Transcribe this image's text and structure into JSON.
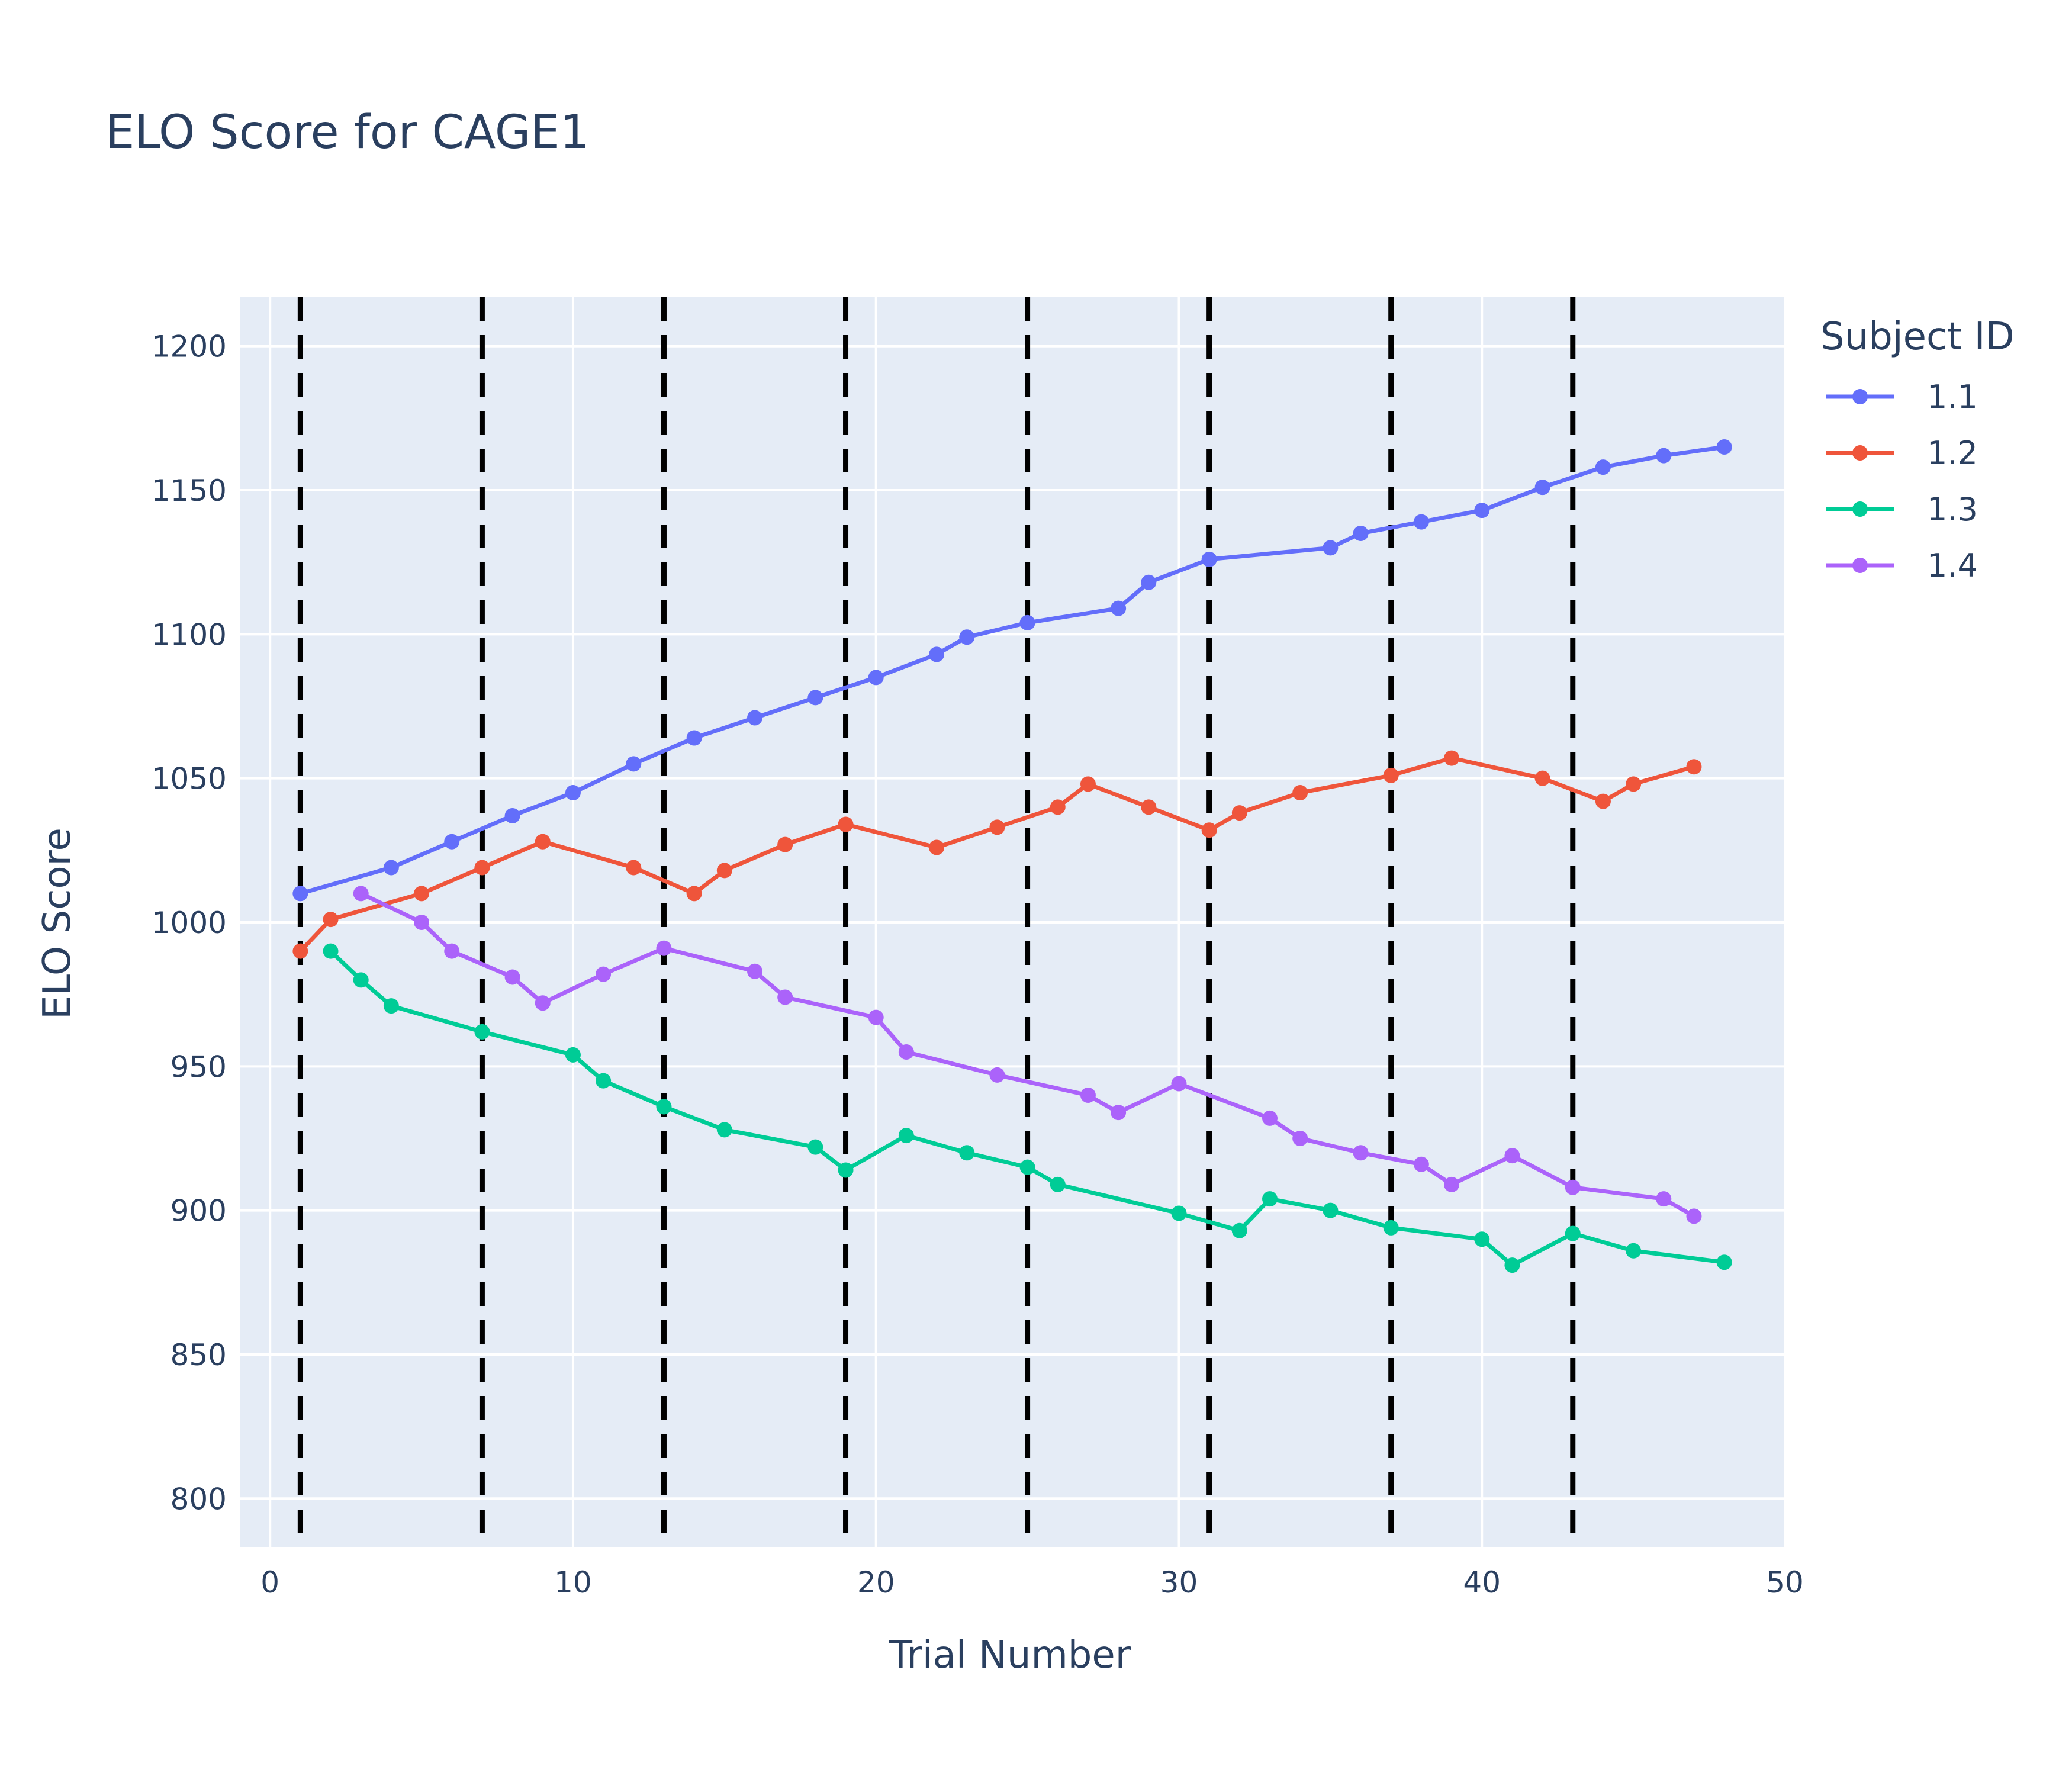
{
  "chart_data": {
    "type": "line",
    "title": "ELO Score for CAGE1",
    "xlabel": "Trial Number",
    "ylabel": "ELO Score",
    "xlim": [
      -1,
      50
    ],
    "ylim": [
      783,
      1217
    ],
    "x_ticks": [
      0,
      10,
      20,
      30,
      40,
      50
    ],
    "y_ticks": [
      800,
      850,
      900,
      950,
      1000,
      1050,
      1100,
      1150,
      1200
    ],
    "grid": true,
    "plot_background": "#e5ecf6",
    "legend": {
      "title": "Subject ID",
      "position": "right"
    },
    "vertical_lines": {
      "x": [
        1,
        7,
        13,
        19,
        25,
        31,
        37,
        43
      ],
      "color": "#000000",
      "style": "dashed"
    },
    "series": [
      {
        "name": "1.1",
        "color": "#636efa",
        "x": [
          1,
          4,
          6,
          8,
          10,
          12,
          14,
          16,
          18,
          20,
          22,
          23,
          25,
          28,
          29,
          31,
          35,
          36,
          38,
          40,
          42,
          44,
          46,
          48
        ],
        "y": [
          1010,
          1019,
          1028,
          1037,
          1045,
          1055,
          1064,
          1071,
          1078,
          1085,
          1093,
          1099,
          1104,
          1109,
          1118,
          1126,
          1130,
          1135,
          1139,
          1143,
          1151,
          1158,
          1162,
          1165
        ]
      },
      {
        "name": "1.2",
        "color": "#ef553b",
        "x": [
          1,
          2,
          5,
          7,
          9,
          12,
          14,
          15,
          17,
          19,
          22,
          24,
          26,
          27,
          29,
          31,
          32,
          34,
          37,
          39,
          42,
          44,
          45,
          47
        ],
        "y": [
          990,
          1001,
          1010,
          1019,
          1028,
          1019,
          1010,
          1018,
          1027,
          1034,
          1026,
          1033,
          1040,
          1048,
          1040,
          1032,
          1038,
          1045,
          1051,
          1057,
          1050,
          1042,
          1048,
          1054
        ]
      },
      {
        "name": "1.3",
        "color": "#00cc96",
        "x": [
          2,
          3,
          4,
          7,
          10,
          11,
          13,
          15,
          18,
          19,
          21,
          23,
          25,
          26,
          30,
          32,
          33,
          35,
          37,
          40,
          41,
          43,
          45,
          48
        ],
        "y": [
          990,
          980,
          971,
          962,
          954,
          945,
          936,
          928,
          922,
          914,
          926,
          920,
          915,
          909,
          899,
          893,
          904,
          900,
          894,
          890,
          881,
          892,
          886,
          882
        ]
      },
      {
        "name": "1.4",
        "color": "#ab63fa",
        "x": [
          3,
          5,
          6,
          8,
          9,
          11,
          13,
          16,
          17,
          20,
          21,
          24,
          27,
          28,
          30,
          33,
          34,
          36,
          38,
          39,
          41,
          43,
          46,
          47
        ],
        "y": [
          1010,
          1000,
          990,
          981,
          972,
          982,
          991,
          983,
          974,
          967,
          955,
          947,
          940,
          934,
          944,
          932,
          925,
          920,
          916,
          909,
          919,
          908,
          904,
          898
        ]
      }
    ]
  }
}
